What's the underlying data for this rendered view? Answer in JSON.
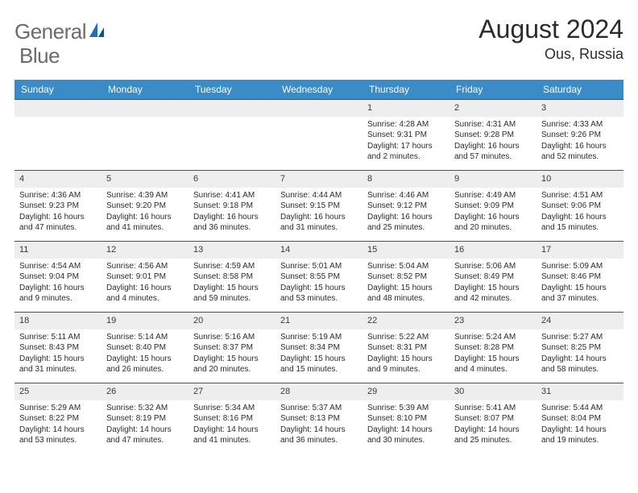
{
  "brand": {
    "name1": "General",
    "name2": "Blue"
  },
  "title": "August 2024",
  "location": "Ous, Russia",
  "header_bg": "#3b8bc6",
  "header_fg": "#ffffff",
  "row_divider": "#2b5a86",
  "daynum_bg": "#eeeeee",
  "text_color": "#2b2b2b",
  "weekdays": [
    "Sunday",
    "Monday",
    "Tuesday",
    "Wednesday",
    "Thursday",
    "Friday",
    "Saturday"
  ],
  "weeks": [
    [
      null,
      null,
      null,
      null,
      {
        "n": "1",
        "sr": "Sunrise: 4:28 AM",
        "ss": "Sunset: 9:31 PM",
        "dl": "Daylight: 17 hours and 2 minutes."
      },
      {
        "n": "2",
        "sr": "Sunrise: 4:31 AM",
        "ss": "Sunset: 9:28 PM",
        "dl": "Daylight: 16 hours and 57 minutes."
      },
      {
        "n": "3",
        "sr": "Sunrise: 4:33 AM",
        "ss": "Sunset: 9:26 PM",
        "dl": "Daylight: 16 hours and 52 minutes."
      }
    ],
    [
      {
        "n": "4",
        "sr": "Sunrise: 4:36 AM",
        "ss": "Sunset: 9:23 PM",
        "dl": "Daylight: 16 hours and 47 minutes."
      },
      {
        "n": "5",
        "sr": "Sunrise: 4:39 AM",
        "ss": "Sunset: 9:20 PM",
        "dl": "Daylight: 16 hours and 41 minutes."
      },
      {
        "n": "6",
        "sr": "Sunrise: 4:41 AM",
        "ss": "Sunset: 9:18 PM",
        "dl": "Daylight: 16 hours and 36 minutes."
      },
      {
        "n": "7",
        "sr": "Sunrise: 4:44 AM",
        "ss": "Sunset: 9:15 PM",
        "dl": "Daylight: 16 hours and 31 minutes."
      },
      {
        "n": "8",
        "sr": "Sunrise: 4:46 AM",
        "ss": "Sunset: 9:12 PM",
        "dl": "Daylight: 16 hours and 25 minutes."
      },
      {
        "n": "9",
        "sr": "Sunrise: 4:49 AM",
        "ss": "Sunset: 9:09 PM",
        "dl": "Daylight: 16 hours and 20 minutes."
      },
      {
        "n": "10",
        "sr": "Sunrise: 4:51 AM",
        "ss": "Sunset: 9:06 PM",
        "dl": "Daylight: 16 hours and 15 minutes."
      }
    ],
    [
      {
        "n": "11",
        "sr": "Sunrise: 4:54 AM",
        "ss": "Sunset: 9:04 PM",
        "dl": "Daylight: 16 hours and 9 minutes."
      },
      {
        "n": "12",
        "sr": "Sunrise: 4:56 AM",
        "ss": "Sunset: 9:01 PM",
        "dl": "Daylight: 16 hours and 4 minutes."
      },
      {
        "n": "13",
        "sr": "Sunrise: 4:59 AM",
        "ss": "Sunset: 8:58 PM",
        "dl": "Daylight: 15 hours and 59 minutes."
      },
      {
        "n": "14",
        "sr": "Sunrise: 5:01 AM",
        "ss": "Sunset: 8:55 PM",
        "dl": "Daylight: 15 hours and 53 minutes."
      },
      {
        "n": "15",
        "sr": "Sunrise: 5:04 AM",
        "ss": "Sunset: 8:52 PM",
        "dl": "Daylight: 15 hours and 48 minutes."
      },
      {
        "n": "16",
        "sr": "Sunrise: 5:06 AM",
        "ss": "Sunset: 8:49 PM",
        "dl": "Daylight: 15 hours and 42 minutes."
      },
      {
        "n": "17",
        "sr": "Sunrise: 5:09 AM",
        "ss": "Sunset: 8:46 PM",
        "dl": "Daylight: 15 hours and 37 minutes."
      }
    ],
    [
      {
        "n": "18",
        "sr": "Sunrise: 5:11 AM",
        "ss": "Sunset: 8:43 PM",
        "dl": "Daylight: 15 hours and 31 minutes."
      },
      {
        "n": "19",
        "sr": "Sunrise: 5:14 AM",
        "ss": "Sunset: 8:40 PM",
        "dl": "Daylight: 15 hours and 26 minutes."
      },
      {
        "n": "20",
        "sr": "Sunrise: 5:16 AM",
        "ss": "Sunset: 8:37 PM",
        "dl": "Daylight: 15 hours and 20 minutes."
      },
      {
        "n": "21",
        "sr": "Sunrise: 5:19 AM",
        "ss": "Sunset: 8:34 PM",
        "dl": "Daylight: 15 hours and 15 minutes."
      },
      {
        "n": "22",
        "sr": "Sunrise: 5:22 AM",
        "ss": "Sunset: 8:31 PM",
        "dl": "Daylight: 15 hours and 9 minutes."
      },
      {
        "n": "23",
        "sr": "Sunrise: 5:24 AM",
        "ss": "Sunset: 8:28 PM",
        "dl": "Daylight: 15 hours and 4 minutes."
      },
      {
        "n": "24",
        "sr": "Sunrise: 5:27 AM",
        "ss": "Sunset: 8:25 PM",
        "dl": "Daylight: 14 hours and 58 minutes."
      }
    ],
    [
      {
        "n": "25",
        "sr": "Sunrise: 5:29 AM",
        "ss": "Sunset: 8:22 PM",
        "dl": "Daylight: 14 hours and 53 minutes."
      },
      {
        "n": "26",
        "sr": "Sunrise: 5:32 AM",
        "ss": "Sunset: 8:19 PM",
        "dl": "Daylight: 14 hours and 47 minutes."
      },
      {
        "n": "27",
        "sr": "Sunrise: 5:34 AM",
        "ss": "Sunset: 8:16 PM",
        "dl": "Daylight: 14 hours and 41 minutes."
      },
      {
        "n": "28",
        "sr": "Sunrise: 5:37 AM",
        "ss": "Sunset: 8:13 PM",
        "dl": "Daylight: 14 hours and 36 minutes."
      },
      {
        "n": "29",
        "sr": "Sunrise: 5:39 AM",
        "ss": "Sunset: 8:10 PM",
        "dl": "Daylight: 14 hours and 30 minutes."
      },
      {
        "n": "30",
        "sr": "Sunrise: 5:41 AM",
        "ss": "Sunset: 8:07 PM",
        "dl": "Daylight: 14 hours and 25 minutes."
      },
      {
        "n": "31",
        "sr": "Sunrise: 5:44 AM",
        "ss": "Sunset: 8:04 PM",
        "dl": "Daylight: 14 hours and 19 minutes."
      }
    ]
  ]
}
